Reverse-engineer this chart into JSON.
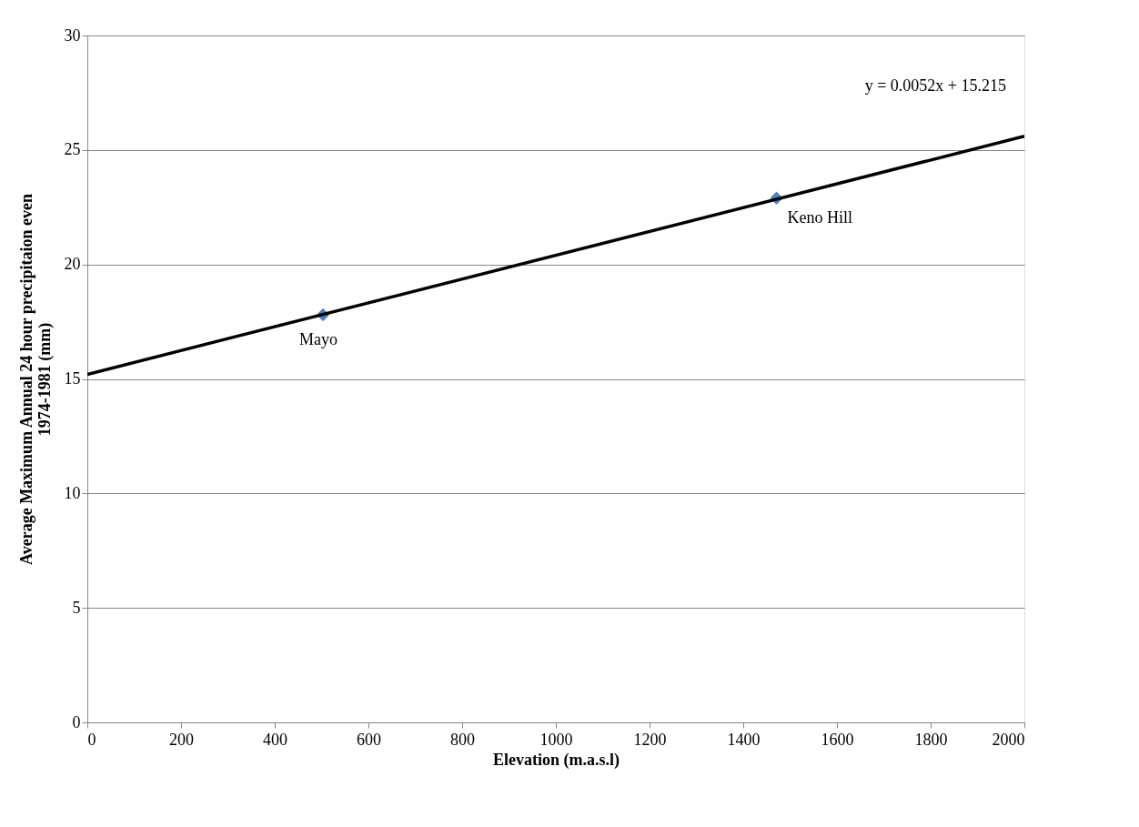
{
  "chart_data": {
    "type": "scatter",
    "xlabel": "Elevation (m.a.s.l)",
    "ylabel": "Average Maximum Annual 24 hour precipitaion even\n1974-1981 (mm)",
    "series": [
      {
        "color": "#4f81bd",
        "marker": "diamond",
        "x": [
          503,
          1471
        ],
        "values": [
          17.8,
          22.9
        ]
      },
      {
        "type": "line",
        "marker": "none",
        "color": "#000000",
        "x": [
          0,
          2000
        ],
        "values": [
          15.2,
          25.6
        ]
      }
    ],
    "annotations": [
      {
        "text": "Mayo",
        "x": 503,
        "y": 17.8
      },
      {
        "text": "Keno Hill",
        "x": 1471,
        "y": 22.9
      },
      {
        "text": "y = 0.0052x + 15.215",
        "x": 2000,
        "y": 25.6
      }
    ],
    "xlim": [
      0,
      2000
    ],
    "xticks": [
      0,
      200,
      400,
      600,
      800,
      1000,
      1200,
      1400,
      1600,
      1800,
      2000
    ],
    "ylim": [
      0,
      30
    ],
    "yticks": [
      0,
      5,
      10,
      15,
      20,
      25,
      30
    ],
    "grid": "y",
    "line_style": "solid"
  }
}
